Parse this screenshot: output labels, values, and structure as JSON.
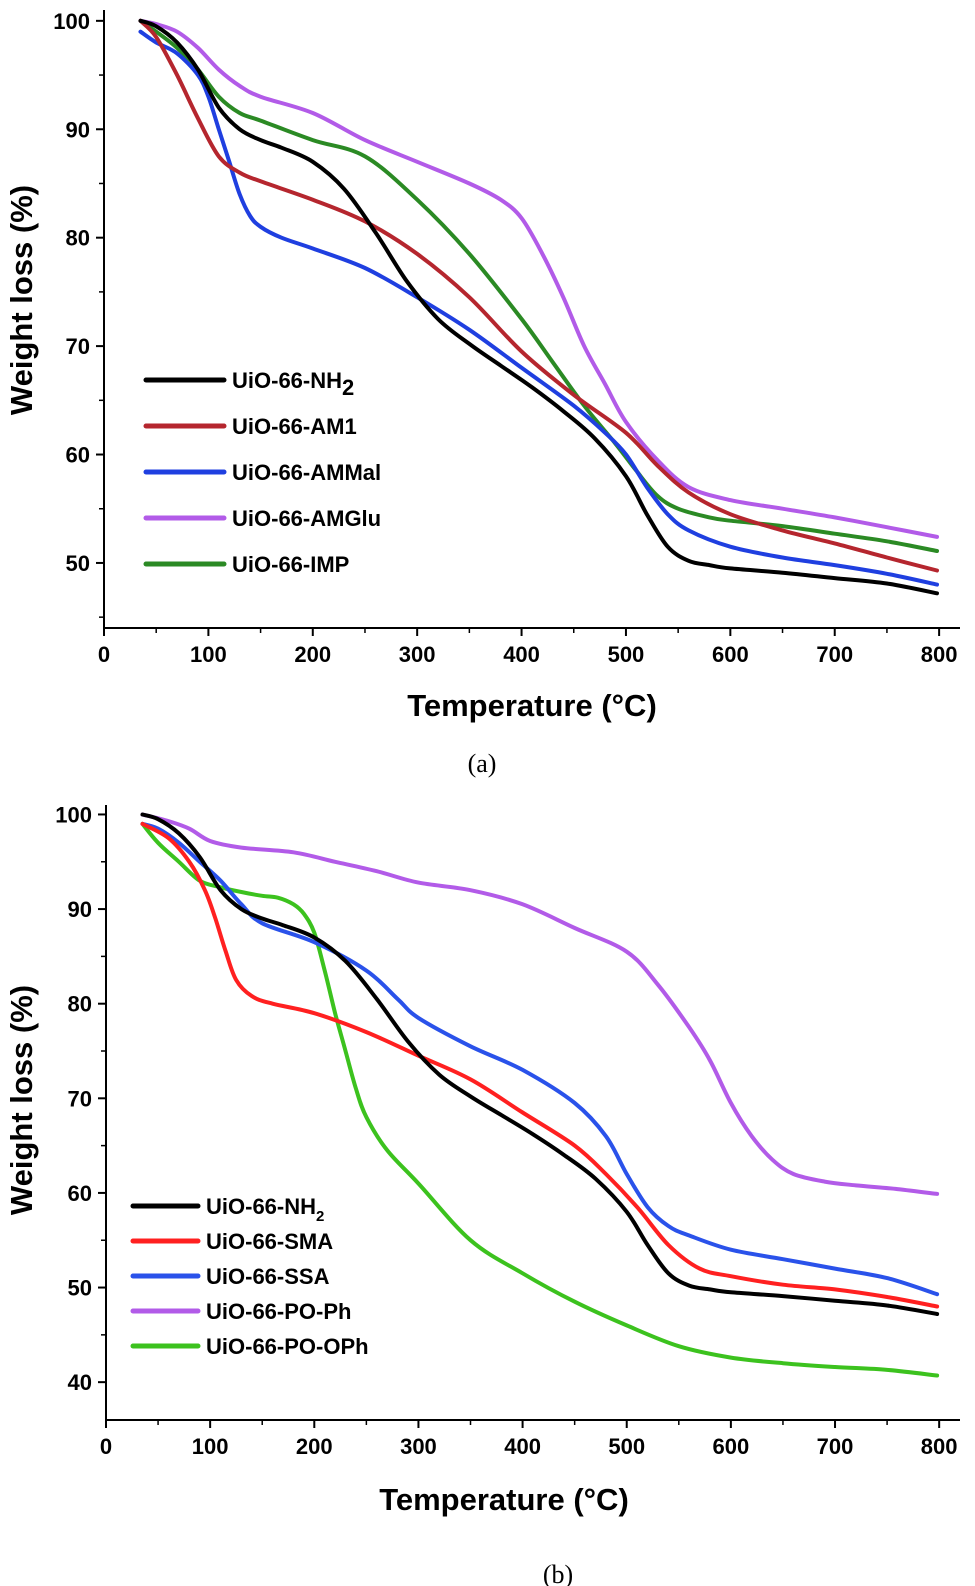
{
  "chart_data": [
    {
      "panel": "(a)",
      "type": "line",
      "xlabel": "Temperature (°C)",
      "ylabel": "Weight loss (%)",
      "xlim": [
        0,
        820
      ],
      "ylim": [
        44,
        101
      ],
      "xticks": [
        "0",
        "100",
        "200",
        "300",
        "400",
        "500",
        "600",
        "700",
        "800"
      ],
      "yticks": [
        "50",
        "60",
        "70",
        "80",
        "90",
        "100"
      ],
      "legend_position": "lower-left",
      "series": [
        {
          "name": "UiO-66-NH",
          "name_sub": "2",
          "color": "#000000",
          "x": [
            35,
            50,
            70,
            90,
            110,
            130,
            150,
            170,
            200,
            230,
            260,
            290,
            320,
            350,
            380,
            410,
            440,
            470,
            500,
            520,
            540,
            560,
            580,
            600,
            650,
            700,
            750,
            798
          ],
          "y": [
            100,
            99.5,
            98,
            95.5,
            92,
            90,
            89,
            88.3,
            87,
            84.5,
            80.5,
            76,
            72.5,
            70.2,
            68.2,
            66.2,
            64,
            61.5,
            58,
            54.5,
            51.5,
            50.2,
            49.8,
            49.5,
            49.1,
            48.6,
            48.1,
            47.2
          ]
        },
        {
          "name": "UiO-66-AM1",
          "color": "#b5262e",
          "x": [
            35,
            50,
            70,
            90,
            110,
            130,
            150,
            200,
            250,
            300,
            350,
            400,
            450,
            500,
            530,
            560,
            600,
            650,
            700,
            750,
            798
          ],
          "y": [
            100,
            98.5,
            95,
            91,
            87.5,
            86,
            85.2,
            83.5,
            81.5,
            78.5,
            74.5,
            69.5,
            65.5,
            62,
            59,
            56.5,
            54.5,
            53,
            51.8,
            50.5,
            49.3
          ]
        },
        {
          "name": "UiO-66-AMMal",
          "color": "#1f3fe0",
          "x": [
            35,
            50,
            70,
            90,
            100,
            110,
            120,
            130,
            140,
            150,
            170,
            200,
            250,
            300,
            350,
            400,
            450,
            480,
            500,
            520,
            540,
            560,
            600,
            650,
            700,
            750,
            798
          ],
          "y": [
            99,
            98,
            97,
            95,
            93,
            90,
            87,
            84,
            82,
            81,
            80,
            79,
            77.2,
            74.5,
            71.5,
            68,
            64.5,
            62,
            60,
            57,
            54.5,
            53,
            51.5,
            50.5,
            49.8,
            49,
            48
          ]
        },
        {
          "name": "UiO-66-AMGlu",
          "color": "#b25be8",
          "x": [
            35,
            50,
            70,
            90,
            110,
            130,
            150,
            200,
            250,
            300,
            350,
            380,
            400,
            420,
            440,
            460,
            480,
            500,
            530,
            560,
            600,
            650,
            700,
            750,
            798
          ],
          "y": [
            100,
            99.7,
            99,
            97.5,
            95.5,
            94,
            93,
            91.5,
            89,
            87,
            85,
            83.5,
            81.8,
            78.5,
            74.5,
            70,
            66.5,
            63,
            59.5,
            57,
            55.8,
            55,
            54.2,
            53.3,
            52.4
          ]
        },
        {
          "name": "UiO-66-IMP",
          "color": "#2b8a24",
          "x": [
            35,
            50,
            70,
            90,
            110,
            130,
            150,
            200,
            250,
            300,
            350,
            400,
            430,
            460,
            490,
            510,
            530,
            550,
            580,
            600,
            650,
            700,
            750,
            798
          ],
          "y": [
            100,
            99,
            97.5,
            95.5,
            93,
            91.5,
            90.8,
            89,
            87.5,
            83.5,
            78.5,
            72.5,
            68.5,
            64.5,
            61,
            58.5,
            56.2,
            55,
            54.2,
            53.9,
            53.4,
            52.7,
            52,
            51.1
          ]
        }
      ]
    },
    {
      "panel": "(b)",
      "type": "line",
      "xlabel": "Temperature (°C)",
      "ylabel": "Weight loss (%)",
      "xlim": [
        0,
        820
      ],
      "ylim": [
        36,
        101
      ],
      "xticks": [
        "0",
        "100",
        "200",
        "300",
        "400",
        "500",
        "600",
        "700",
        "800"
      ],
      "yticks": [
        "40",
        "50",
        "60",
        "70",
        "80",
        "90",
        "100"
      ],
      "legend_position": "lower-left",
      "series": [
        {
          "name": "UiO-66-NH",
          "name_sub": "2",
          "color": "#000000",
          "x": [
            35,
            50,
            70,
            90,
            110,
            130,
            150,
            170,
            200,
            230,
            260,
            290,
            320,
            350,
            380,
            410,
            440,
            470,
            500,
            520,
            540,
            560,
            580,
            600,
            650,
            700,
            750,
            798
          ],
          "y": [
            100,
            99.5,
            98,
            95.5,
            92,
            90,
            89,
            88.3,
            87,
            84.5,
            80.5,
            76,
            72.5,
            70.2,
            68.2,
            66.2,
            64,
            61.5,
            58,
            54.5,
            51.5,
            50.2,
            49.8,
            49.5,
            49.1,
            48.6,
            48.1,
            47.2
          ]
        },
        {
          "name": "UiO-66-SMA",
          "color": "#ff2020",
          "x": [
            35,
            60,
            80,
            95,
            105,
            115,
            125,
            140,
            160,
            200,
            250,
            300,
            350,
            400,
            450,
            480,
            510,
            540,
            570,
            600,
            650,
            700,
            750,
            798
          ],
          "y": [
            99,
            97.5,
            95,
            92,
            89,
            85.5,
            82.5,
            80.8,
            80,
            79,
            77,
            74.5,
            72,
            68.5,
            65,
            62,
            58.5,
            54.5,
            52,
            51.2,
            50.3,
            49.8,
            49,
            48
          ]
        },
        {
          "name": "UiO-66-SSA",
          "color": "#2a52ea",
          "x": [
            35,
            50,
            70,
            90,
            110,
            130,
            150,
            200,
            250,
            280,
            300,
            350,
            400,
            450,
            480,
            500,
            520,
            540,
            560,
            600,
            650,
            700,
            750,
            798
          ],
          "y": [
            99,
            98.5,
            97,
            95,
            93,
            90.5,
            88.5,
            86.5,
            83.5,
            80.5,
            78.5,
            75.5,
            73,
            69.5,
            66,
            62,
            58.5,
            56.5,
            55.5,
            54,
            53,
            52,
            51,
            49.3
          ]
        },
        {
          "name": "UiO-66-PO-Ph",
          "color": "#b25be8",
          "x": [
            35,
            60,
            80,
            100,
            130,
            180,
            220,
            260,
            300,
            350,
            400,
            450,
            500,
            530,
            560,
            580,
            600,
            620,
            640,
            660,
            690,
            720,
            760,
            798
          ],
          "y": [
            100,
            99.3,
            98.5,
            97.2,
            96.5,
            96,
            95,
            94,
            92.8,
            92,
            90.5,
            88,
            85.5,
            82,
            77.5,
            74,
            69.5,
            66,
            63.5,
            62,
            61.2,
            60.8,
            60.4,
            59.9
          ]
        },
        {
          "name": "UiO-66-PO-OPh",
          "color": "#3cc21e",
          "x": [
            35,
            50,
            70,
            90,
            110,
            130,
            150,
            165,
            180,
            190,
            200,
            210,
            220,
            230,
            240,
            250,
            270,
            300,
            350,
            400,
            450,
            500,
            550,
            600,
            650,
            700,
            750,
            798
          ],
          "y": [
            99,
            97,
            95,
            93,
            92.3,
            91.8,
            91.4,
            91.2,
            90.5,
            89.5,
            87.5,
            83.5,
            79,
            75,
            71,
            68,
            64.5,
            61,
            55,
            51.5,
            48.5,
            46,
            43.8,
            42.6,
            42,
            41.6,
            41.3,
            40.7
          ]
        }
      ]
    }
  ],
  "captions": [
    "(a)",
    "(b)"
  ]
}
